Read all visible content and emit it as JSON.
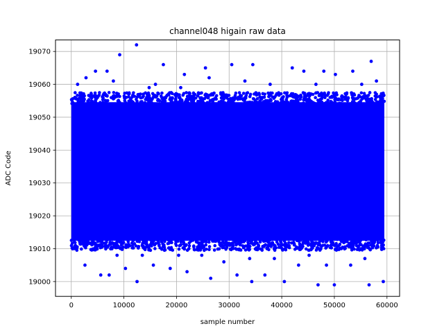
{
  "chart_data": {
    "type": "scatter",
    "title": "channel048 higain raw data",
    "xlabel": "sample number",
    "ylabel": "ADC Code",
    "xlim": [
      -3000,
      62400
    ],
    "ylim": [
      18995.5,
      19073.5
    ],
    "xticks": [
      0,
      10000,
      20000,
      30000,
      40000,
      50000,
      60000
    ],
    "yticks": [
      19000,
      19010,
      19020,
      19030,
      19040,
      19050,
      19060,
      19070
    ],
    "xtick_labels": [
      "0",
      "10000",
      "20000",
      "30000",
      "40000",
      "50000",
      "60000"
    ],
    "ytick_labels": [
      "19000",
      "19010",
      "19020",
      "19030",
      "19040",
      "19050",
      "19060",
      "19070"
    ],
    "grid": true,
    "marker_color": "#0000ff",
    "series": [
      {
        "x_range": [
          0,
          59500
        ],
        "dense_band": [
          19012,
          19055
        ],
        "points": [
          [
            12400,
            19072
          ],
          [
            9200,
            19069
          ],
          [
            57000,
            19067
          ],
          [
            17500,
            19066
          ],
          [
            30500,
            19066
          ],
          [
            34500,
            19066
          ],
          [
            25500,
            19065
          ],
          [
            42000,
            19065
          ],
          [
            6800,
            19064
          ],
          [
            44200,
            19064
          ],
          [
            48000,
            19064
          ],
          [
            53500,
            19064
          ],
          [
            4600,
            19064
          ],
          [
            50200,
            19063
          ],
          [
            26200,
            19062
          ],
          [
            33000,
            19061
          ],
          [
            2800,
            19062
          ],
          [
            8000,
            19061
          ],
          [
            16000,
            19060
          ],
          [
            55200,
            19060
          ],
          [
            14800,
            19059
          ],
          [
            20800,
            19059
          ],
          [
            37800,
            19060
          ],
          [
            46500,
            19060
          ],
          [
            1200,
            19060
          ],
          [
            21500,
            19063
          ],
          [
            58000,
            19061
          ],
          [
            12500,
            19000
          ],
          [
            34300,
            19000
          ],
          [
            40500,
            19000
          ],
          [
            46900,
            18999
          ],
          [
            50000,
            18999
          ],
          [
            56600,
            18999
          ],
          [
            59300,
            19000
          ],
          [
            26500,
            19001
          ],
          [
            5600,
            19002
          ],
          [
            22000,
            19003
          ],
          [
            31500,
            19002
          ],
          [
            7200,
            19002
          ],
          [
            36800,
            19002
          ],
          [
            18800,
            19004
          ],
          [
            10300,
            19004
          ],
          [
            15600,
            19005
          ],
          [
            2600,
            19005
          ],
          [
            43200,
            19005
          ],
          [
            48500,
            19005
          ],
          [
            53100,
            19005
          ],
          [
            29000,
            19006
          ],
          [
            38600,
            19007
          ],
          [
            24800,
            19008
          ],
          [
            13500,
            19008
          ],
          [
            55800,
            19007
          ],
          [
            33900,
            19007
          ],
          [
            20400,
            19008
          ],
          [
            8700,
            19008
          ],
          [
            45200,
            19008
          ]
        ]
      }
    ]
  }
}
